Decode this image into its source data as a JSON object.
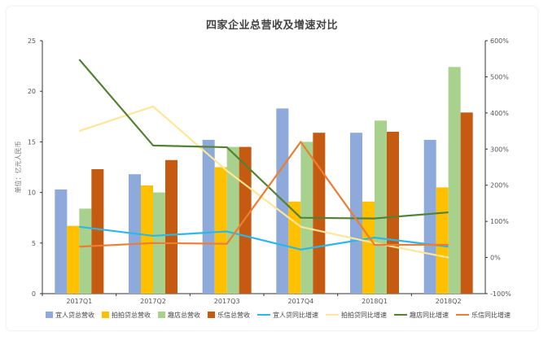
{
  "chart_data": {
    "type": "bar",
    "title": "四家企业总营收及增速对比",
    "ylabel": "单位：亿元人民币",
    "categories": [
      "2017Q1",
      "2017Q2",
      "2017Q3",
      "2017Q4",
      "2018Q1",
      "2018Q2"
    ],
    "left_axis": {
      "ylim": [
        0,
        25
      ],
      "ticks": [
        0,
        5,
        10,
        15,
        20,
        25
      ]
    },
    "right_axis": {
      "ylim": [
        -100,
        600
      ],
      "ticks": [
        "-100%",
        "0%",
        "100%",
        "200%",
        "300%",
        "400%",
        "500%",
        "600%"
      ]
    },
    "grid": false,
    "legend_position": "bottom",
    "bar_series": [
      {
        "name": "宜人贷总营收",
        "color": "#8eaadb",
        "values": [
          10.3,
          11.8,
          15.2,
          18.3,
          15.9,
          15.2
        ]
      },
      {
        "name": "拍拍贷总营收",
        "color": "#ffc000",
        "values": [
          6.7,
          10.7,
          12.5,
          9.1,
          9.1,
          10.5
        ]
      },
      {
        "name": "趣店总营收",
        "color": "#a9d18e",
        "values": [
          8.4,
          10.0,
          14.5,
          15.0,
          17.1,
          22.4
        ]
      },
      {
        "name": "乐信总营收",
        "color": "#c55a11",
        "values": [
          12.3,
          13.2,
          14.5,
          15.9,
          16.0,
          17.9
        ]
      }
    ],
    "line_series": [
      {
        "name": "宜人贷同比增速",
        "color": "#2ab7e9",
        "unit": "%",
        "values": [
          85,
          60,
          72,
          22,
          55,
          30
        ]
      },
      {
        "name": "拍拍贷同比增速",
        "color": "#ffe699",
        "unit": "%",
        "values": [
          350,
          418,
          240,
          85,
          40,
          0
        ]
      },
      {
        "name": "趣店同比增速",
        "color": "#548235",
        "unit": "%",
        "values": [
          548,
          310,
          305,
          110,
          108,
          125
        ]
      },
      {
        "name": "乐信同比增速",
        "color": "#ed7d31",
        "unit": "%",
        "values": [
          30,
          40,
          38,
          320,
          35,
          35
        ]
      }
    ]
  }
}
